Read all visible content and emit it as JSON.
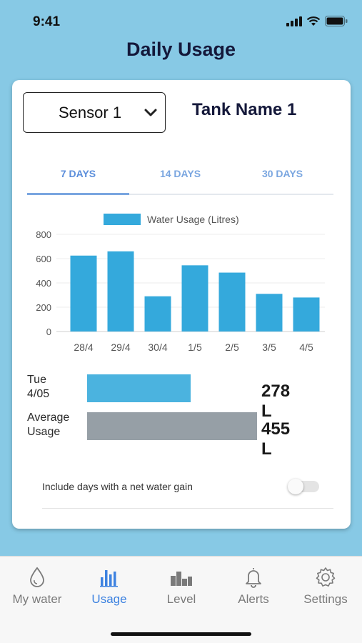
{
  "status": {
    "time": "9:41"
  },
  "header": {
    "title": "Daily Usage"
  },
  "selector": {
    "sensor": "Sensor 1",
    "tank_name": "Tank Name 1"
  },
  "tabs": [
    {
      "label": "7 DAYS",
      "active": true
    },
    {
      "label": "14 DAYS",
      "active": false
    },
    {
      "label": "30 DAYS",
      "active": false
    }
  ],
  "chart_data": {
    "type": "bar",
    "legend": "Water Usage (Litres)",
    "categories": [
      "28/4",
      "29/4",
      "30/4",
      "1/5",
      "2/5",
      "3/5",
      "4/5"
    ],
    "values": [
      625,
      660,
      290,
      545,
      485,
      310,
      280
    ],
    "yticks": [
      "0",
      "200",
      "400",
      "600",
      "800"
    ],
    "ylim": [
      0,
      800
    ],
    "color": "#34a9dc",
    "grid": true
  },
  "comparison": {
    "day": {
      "label_line1": "Tue",
      "label_line2": "4/05",
      "value": "278 L",
      "fraction": 0.61,
      "color": "#4bb3df"
    },
    "average": {
      "label_line1": "Average",
      "label_line2": "Usage",
      "value": "455 L",
      "fraction": 1.0,
      "color": "#969fa6"
    }
  },
  "toggle": {
    "label": "Include days with a net water gain",
    "on": false
  },
  "nav": [
    {
      "label": "My water",
      "icon": "water-drop-icon",
      "active": false
    },
    {
      "label": "Usage",
      "icon": "bar-chart-icon",
      "active": true
    },
    {
      "label": "Level",
      "icon": "level-icon",
      "active": false
    },
    {
      "label": "Alerts",
      "icon": "bell-icon",
      "active": false
    },
    {
      "label": "Settings",
      "icon": "gear-icon",
      "active": false
    }
  ]
}
